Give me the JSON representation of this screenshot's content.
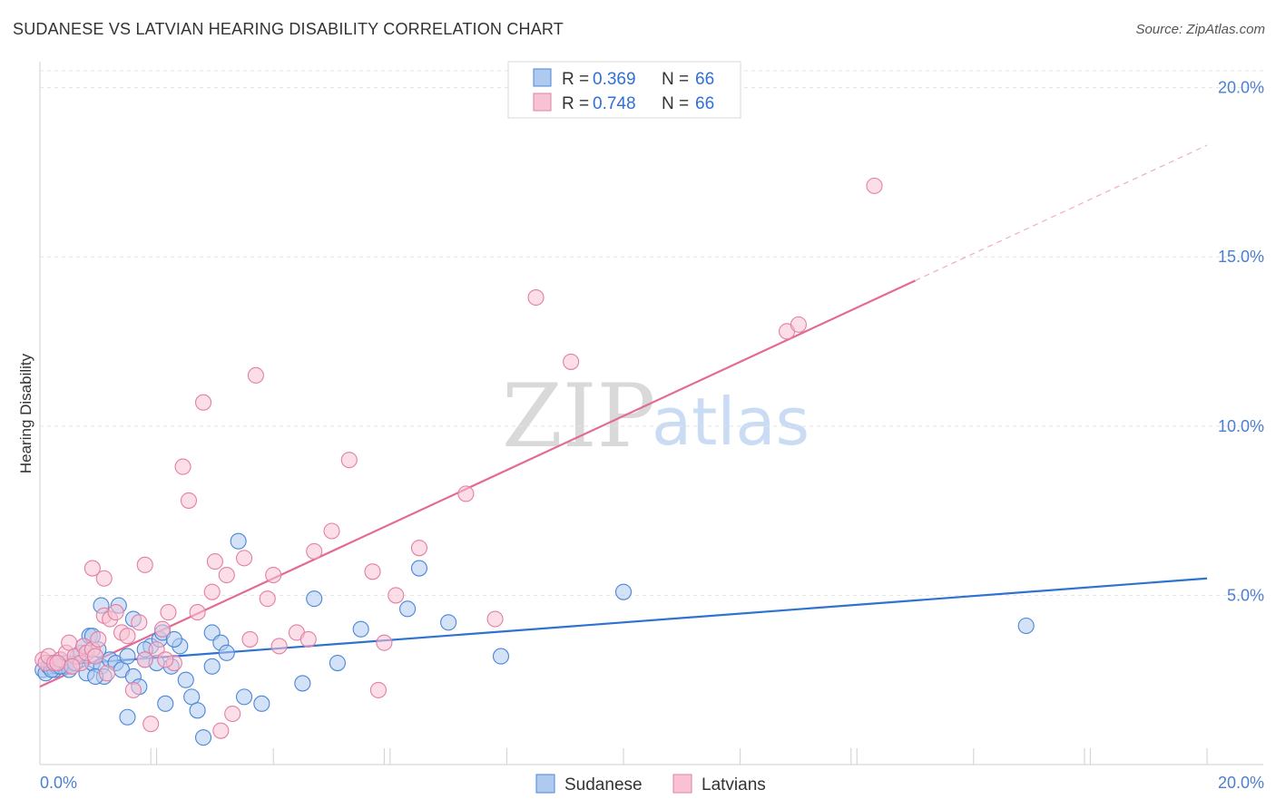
{
  "header": {
    "title": "SUDANESE VS LATVIAN HEARING DISABILITY CORRELATION CHART",
    "source": "Source: ZipAtlas.com"
  },
  "watermark": {
    "zip": "ZIP",
    "atlas": "atlas"
  },
  "legend": {
    "rows": [
      {
        "r_label": "R =",
        "r_value": "0.369",
        "n_label": "N =",
        "n_value": "66"
      },
      {
        "r_label": "R =",
        "r_value": "0.748",
        "n_label": "N =",
        "n_value": "66"
      }
    ]
  },
  "colors": {
    "sudanese_fill": "#aecbef",
    "sudanese_stroke": "#4a86d8",
    "sudanese_line": "#2f72d2",
    "latvian_fill": "#f7c3d3",
    "latvian_stroke": "#e37fa3",
    "latvian_line": "#e36a94",
    "tick_text": "#4a7fd4"
  },
  "chart_data": {
    "type": "scatter",
    "title": "SUDANESE VS LATVIAN HEARING DISABILITY CORRELATION CHART",
    "xlabel": "",
    "ylabel": "Hearing Disability",
    "xlim": [
      0,
      20
    ],
    "ylim": [
      0,
      20.5
    ],
    "x_tick_labels": [
      "0.0%",
      "20.0%"
    ],
    "y_ticks": [
      5,
      10,
      15,
      20
    ],
    "y_tick_labels": [
      "5.0%",
      "10.0%",
      "15.0%",
      "20.0%"
    ],
    "grid": true,
    "series": [
      {
        "name": "Sudanese",
        "r": 0.369,
        "n": 66,
        "trend": {
          "x0": 0,
          "y0": 2.9,
          "x1": 20,
          "y1": 5.5,
          "solid_until": 20
        },
        "points": [
          [
            0.05,
            2.8
          ],
          [
            0.1,
            2.7
          ],
          [
            0.15,
            2.9
          ],
          [
            0.2,
            3.0
          ],
          [
            0.25,
            2.8
          ],
          [
            0.3,
            2.9
          ],
          [
            0.35,
            3.1
          ],
          [
            0.4,
            2.9
          ],
          [
            0.45,
            3.0
          ],
          [
            0.5,
            2.8
          ],
          [
            0.55,
            2.9
          ],
          [
            0.6,
            3.0
          ],
          [
            0.65,
            3.2
          ],
          [
            0.7,
            3.3
          ],
          [
            0.75,
            3.5
          ],
          [
            0.8,
            2.7
          ],
          [
            0.85,
            3.8
          ],
          [
            0.9,
            3.0
          ],
          [
            1.0,
            3.4
          ],
          [
            1.05,
            2.9
          ],
          [
            1.1,
            2.6
          ],
          [
            1.2,
            3.1
          ],
          [
            1.3,
            3.0
          ],
          [
            1.4,
            2.8
          ],
          [
            1.5,
            3.2
          ],
          [
            1.6,
            2.6
          ],
          [
            1.7,
            2.3
          ],
          [
            1.8,
            3.1
          ],
          [
            1.9,
            3.5
          ],
          [
            2.0,
            3.0
          ],
          [
            2.05,
            3.7
          ],
          [
            2.1,
            3.9
          ],
          [
            2.15,
            1.8
          ],
          [
            2.25,
            2.9
          ],
          [
            2.4,
            3.5
          ],
          [
            2.5,
            2.5
          ],
          [
            2.6,
            2.0
          ],
          [
            2.7,
            1.6
          ],
          [
            2.8,
            0.8
          ],
          [
            2.95,
            3.9
          ],
          [
            3.1,
            3.6
          ],
          [
            3.2,
            3.3
          ],
          [
            3.5,
            2.0
          ],
          [
            3.8,
            1.8
          ],
          [
            4.5,
            2.4
          ],
          [
            4.7,
            4.9
          ],
          [
            5.1,
            3.0
          ],
          [
            5.5,
            4.0
          ],
          [
            6.3,
            4.6
          ],
          [
            6.5,
            5.8
          ],
          [
            7.0,
            4.2
          ],
          [
            7.9,
            3.2
          ],
          [
            10.0,
            5.1
          ],
          [
            16.9,
            4.1
          ],
          [
            1.35,
            4.7
          ],
          [
            0.9,
            3.8
          ],
          [
            1.05,
            4.7
          ],
          [
            1.6,
            4.3
          ],
          [
            1.5,
            1.4
          ],
          [
            0.95,
            2.6
          ],
          [
            2.95,
            2.9
          ],
          [
            3.4,
            6.6
          ],
          [
            2.3,
            3.7
          ],
          [
            1.8,
            3.4
          ],
          [
            0.2,
            2.8
          ],
          [
            0.35,
            2.9
          ]
        ]
      },
      {
        "name": "Latvians",
        "r": 0.748,
        "n": 66,
        "trend": {
          "x0": 0,
          "y0": 2.3,
          "x1": 20,
          "y1": 18.3,
          "solid_until": 15
        },
        "points": [
          [
            0.05,
            3.1
          ],
          [
            0.1,
            3.0
          ],
          [
            0.15,
            3.2
          ],
          [
            0.25,
            3.0
          ],
          [
            0.35,
            3.1
          ],
          [
            0.45,
            3.3
          ],
          [
            0.5,
            3.6
          ],
          [
            0.6,
            3.2
          ],
          [
            0.7,
            3.0
          ],
          [
            0.75,
            3.5
          ],
          [
            0.8,
            3.3
          ],
          [
            0.9,
            3.4
          ],
          [
            0.95,
            3.2
          ],
          [
            1.0,
            3.7
          ],
          [
            1.1,
            4.4
          ],
          [
            1.2,
            4.3
          ],
          [
            1.3,
            4.5
          ],
          [
            1.4,
            3.9
          ],
          [
            1.5,
            3.8
          ],
          [
            1.6,
            2.2
          ],
          [
            1.7,
            4.2
          ],
          [
            1.8,
            3.1
          ],
          [
            1.9,
            1.2
          ],
          [
            2.0,
            3.4
          ],
          [
            2.1,
            4.0
          ],
          [
            2.2,
            4.5
          ],
          [
            2.3,
            3.0
          ],
          [
            2.45,
            8.8
          ],
          [
            2.55,
            7.8
          ],
          [
            2.7,
            4.5
          ],
          [
            2.8,
            10.7
          ],
          [
            2.95,
            5.1
          ],
          [
            3.0,
            6.0
          ],
          [
            3.1,
            1.0
          ],
          [
            3.2,
            5.6
          ],
          [
            3.3,
            1.5
          ],
          [
            3.5,
            6.1
          ],
          [
            3.6,
            3.7
          ],
          [
            3.7,
            11.5
          ],
          [
            3.9,
            4.9
          ],
          [
            4.0,
            5.6
          ],
          [
            4.1,
            3.5
          ],
          [
            4.4,
            3.9
          ],
          [
            4.6,
            3.7
          ],
          [
            4.7,
            6.3
          ],
          [
            5.0,
            6.9
          ],
          [
            5.3,
            9.0
          ],
          [
            5.7,
            5.7
          ],
          [
            5.8,
            2.2
          ],
          [
            5.9,
            3.6
          ],
          [
            6.1,
            5.0
          ],
          [
            6.5,
            6.4
          ],
          [
            7.3,
            8.0
          ],
          [
            7.8,
            4.3
          ],
          [
            8.5,
            13.8
          ],
          [
            9.1,
            11.9
          ],
          [
            12.8,
            12.8
          ],
          [
            13.0,
            13.0
          ],
          [
            14.3,
            17.1
          ],
          [
            0.9,
            5.8
          ],
          [
            1.1,
            5.5
          ],
          [
            1.8,
            5.9
          ],
          [
            0.3,
            3.0
          ],
          [
            0.55,
            2.9
          ],
          [
            1.15,
            2.7
          ],
          [
            2.15,
            3.1
          ]
        ]
      }
    ]
  },
  "bottom_legend": {
    "items": [
      "Sudanese",
      "Latvians"
    ]
  }
}
